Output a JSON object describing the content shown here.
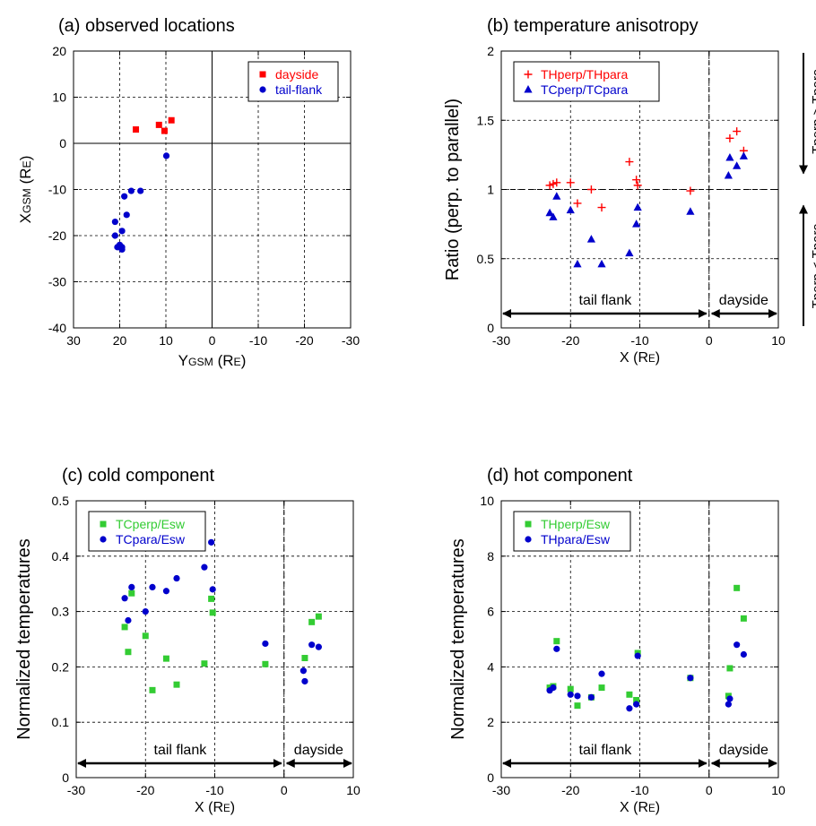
{
  "chart_data": [
    {
      "id": "a",
      "type": "scatter",
      "title": "(a) observed locations",
      "xlabel": "YGSM (RE)",
      "ylabel": "XGSM (RE)",
      "xlim": [
        30,
        -30
      ],
      "ylim": [
        -40,
        20
      ],
      "x_ticks": [
        30,
        20,
        10,
        0,
        -10,
        -20,
        -30
      ],
      "y_ticks": [
        -40,
        -30,
        -20,
        -10,
        0,
        10,
        20
      ],
      "grid": true,
      "legend": "top-right",
      "series": [
        {
          "name": "dayside",
          "color": "#ff0000",
          "marker": "square",
          "x": [
            16.5,
            11.5,
            10.3,
            8.8
          ],
          "y": [
            3.0,
            4.0,
            2.7,
            5.0
          ]
        },
        {
          "name": "tail-flank",
          "color": "#0000cc",
          "marker": "circle",
          "x": [
            9.9,
            17.5,
            15.5,
            19.0,
            18.5,
            19.5,
            21.0,
            21.0,
            20.5,
            19.5,
            20.0,
            19.5
          ],
          "y": [
            -2.7,
            -10.3,
            -10.3,
            -11.5,
            -15.5,
            -19.0,
            -20.0,
            -17.0,
            -22.5,
            -23.0,
            -22.0,
            -22.5
          ]
        }
      ]
    },
    {
      "id": "b",
      "type": "scatter",
      "title": "(b) temperature anisotropy",
      "xlabel": "X (RE)",
      "ylabel": "Ratio (perp. to parallel)",
      "xlim": [
        -30,
        10
      ],
      "ylim": [
        0,
        2
      ],
      "x_ticks": [
        -30,
        -20,
        -10,
        0,
        10
      ],
      "y_ticks": [
        0,
        0.5,
        1,
        1.5,
        2
      ],
      "grid": true,
      "legend": "top-left",
      "series": [
        {
          "name": "THperp/THpara",
          "color": "#ff0000",
          "marker": "plus",
          "x": [
            -23.0,
            -22.5,
            -22.0,
            -20.0,
            -19.0,
            -17.0,
            -15.5,
            -11.5,
            -10.5,
            -10.3,
            -2.7,
            3.0,
            4.0,
            5.0
          ],
          "y": [
            1.03,
            1.04,
            1.05,
            1.05,
            0.9,
            1.0,
            0.87,
            1.2,
            1.07,
            1.03,
            0.99,
            1.37,
            1.42,
            1.28
          ]
        },
        {
          "name": "TCperp/TCpara",
          "color": "#0000cc",
          "marker": "triangle",
          "x": [
            -23.0,
            -22.5,
            -22.0,
            -20.0,
            -19.0,
            -17.0,
            -15.5,
            -11.5,
            -10.5,
            -10.3,
            -2.7,
            3.0,
            4.0,
            5.0,
            2.8
          ],
          "y": [
            0.83,
            0.8,
            0.95,
            0.85,
            0.46,
            0.64,
            0.46,
            0.54,
            0.75,
            0.87,
            0.84,
            1.23,
            1.17,
            1.24,
            1.1
          ]
        }
      ],
      "annotations": {
        "threshold": 1,
        "region_left": "tail flank",
        "region_right": "dayside",
        "side_upper": "Tperp > Tpara",
        "side_lower": "Tperp < Tpara"
      }
    },
    {
      "id": "c",
      "type": "scatter",
      "title": "(c) cold component",
      "xlabel": "X (RE)",
      "ylabel": "Normalized temperatures",
      "xlim": [
        -30,
        10
      ],
      "ylim": [
        0,
        0.5
      ],
      "x_ticks": [
        -30,
        -20,
        -10,
        0,
        10
      ],
      "y_ticks": [
        0,
        0.1,
        0.2,
        0.3,
        0.4,
        0.5
      ],
      "grid": true,
      "legend": "top-left",
      "series": [
        {
          "name": "TCperp/Esw",
          "color": "#33cc33",
          "marker": "square",
          "x": [
            -23.0,
            -22.5,
            -22.0,
            -20.0,
            -19.0,
            -17.0,
            -15.5,
            -11.5,
            -10.5,
            -10.3,
            -2.7,
            3.0,
            4.0,
            5.0
          ],
          "y": [
            0.272,
            0.227,
            0.333,
            0.256,
            0.158,
            0.215,
            0.168,
            0.206,
            0.323,
            0.298,
            0.205,
            0.216,
            0.281,
            0.291
          ]
        },
        {
          "name": "TCpara/Esw",
          "color": "#0000cc",
          "marker": "circle",
          "x": [
            -23.0,
            -22.5,
            -22.0,
            -20.0,
            -19.0,
            -17.0,
            -15.5,
            -11.5,
            -10.5,
            -10.3,
            -2.7,
            3.0,
            2.8,
            4.0,
            5.0
          ],
          "y": [
            0.324,
            0.284,
            0.344,
            0.3,
            0.344,
            0.337,
            0.36,
            0.38,
            0.425,
            0.34,
            0.242,
            0.174,
            0.193,
            0.24,
            0.236
          ]
        }
      ],
      "annotations": {
        "region_left": "tail flank",
        "region_right": "dayside"
      }
    },
    {
      "id": "d",
      "type": "scatter",
      "title": "(d) hot component",
      "xlabel": "X (RE)",
      "ylabel": "Normalized temperatures",
      "xlim": [
        -30,
        10
      ],
      "ylim": [
        0,
        10
      ],
      "x_ticks": [
        -30,
        -20,
        -10,
        0,
        10
      ],
      "y_ticks": [
        0,
        2,
        4,
        6,
        8,
        10
      ],
      "grid": true,
      "legend": "top-left",
      "series": [
        {
          "name": "THperp/Esw",
          "color": "#33cc33",
          "marker": "square",
          "x": [
            -23.0,
            -22.5,
            -22.0,
            -20.0,
            -19.0,
            -17.0,
            -15.5,
            -11.5,
            -10.5,
            -10.3,
            -2.7,
            2.8,
            3.0,
            4.0,
            5.0
          ],
          "y": [
            3.25,
            3.3,
            4.93,
            3.2,
            2.6,
            2.9,
            3.25,
            3.0,
            2.8,
            4.5,
            3.6,
            2.95,
            3.95,
            6.85,
            5.75
          ]
        },
        {
          "name": "THpara/Esw",
          "color": "#0000cc",
          "marker": "circle",
          "x": [
            -23.0,
            -22.5,
            -22.0,
            -20.0,
            -19.0,
            -17.0,
            -15.5,
            -11.5,
            -10.5,
            -10.3,
            -2.7,
            2.8,
            3.0,
            4.0,
            5.0
          ],
          "y": [
            3.15,
            3.25,
            4.65,
            3.0,
            2.95,
            2.9,
            3.75,
            2.5,
            2.65,
            4.4,
            3.6,
            2.65,
            2.85,
            4.8,
            4.45
          ]
        }
      ],
      "annotations": {
        "region_left": "tail flank",
        "region_right": "dayside"
      }
    }
  ]
}
